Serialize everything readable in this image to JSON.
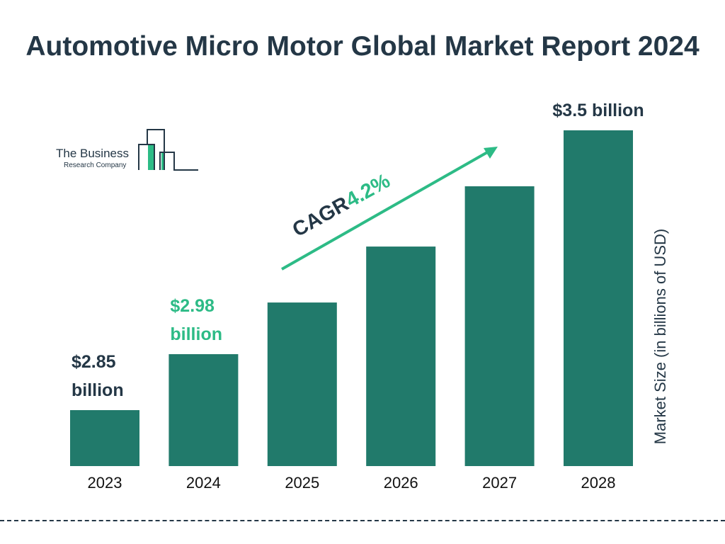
{
  "chart_data": {
    "type": "bar",
    "title": "Automotive Micro Motor Global Market Report 2024",
    "categories": [
      "2023",
      "2024",
      "2025",
      "2026",
      "2027",
      "2028"
    ],
    "values": [
      2.85,
      2.98,
      3.1,
      3.23,
      3.37,
      3.5
    ],
    "data_labels": [
      {
        "index": 0,
        "lines": [
          "$2.85",
          "billion"
        ],
        "color": "#243746"
      },
      {
        "index": 1,
        "lines": [
          "$2.98",
          "billion"
        ],
        "color": "#2dbb86"
      },
      {
        "index": 5,
        "lines": [
          "$3.5 billion"
        ],
        "color": "#243746"
      }
    ],
    "xlabel": "",
    "ylabel": "Market Size (in billions of USD)",
    "annotation": {
      "label": "CAGR",
      "value": "4.2%"
    },
    "grid": false,
    "colors": {
      "bar": "#217a6b",
      "title": "#243746",
      "highlight": "#2dbb86"
    }
  },
  "logo": {
    "line1": "The Business",
    "line2": "Research Company"
  }
}
